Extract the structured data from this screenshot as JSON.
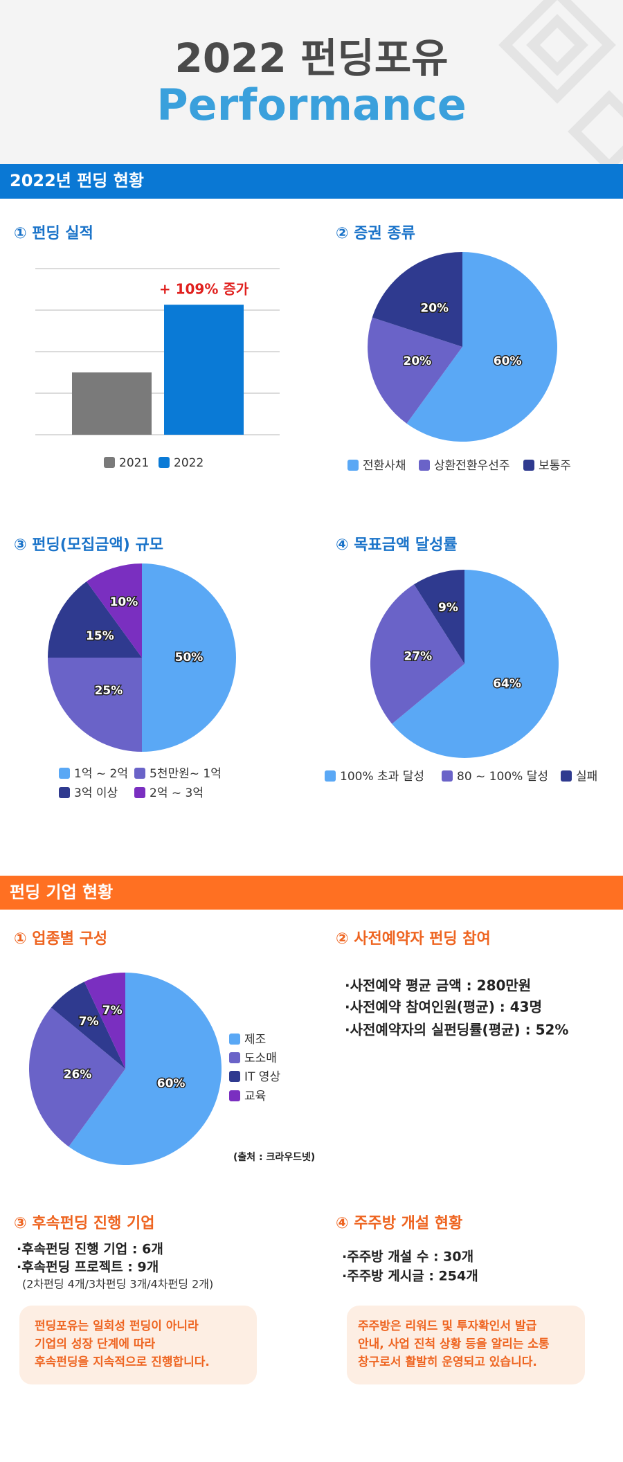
{
  "header": {
    "title_line1": "2022 펀딩포유",
    "title_line2": "Performance"
  },
  "section1": {
    "title": "2022년 펀딩 현황",
    "bar": {
      "type": "bar",
      "title": "① 펀딩 실적",
      "categories": [
        "2021",
        "2022"
      ],
      "values": [
        1.5,
        3.13
      ],
      "colors": [
        "#7a7a7a",
        "#0a7ad6"
      ],
      "annotation": "+ 109% 증가",
      "ylim": [
        0,
        4
      ],
      "yticks": [
        0,
        1,
        2,
        3,
        4
      ],
      "grid": true
    },
    "pie1": {
      "type": "pie",
      "title": "② 증권 종류",
      "labels": [
        "전환사채",
        "상환전환우선주",
        "보통주"
      ],
      "values": [
        60,
        20,
        20
      ],
      "value_labels": [
        "60%",
        "20%",
        "20%"
      ],
      "colors": [
        "#5aa8f5",
        "#6a63c8",
        "#2f3a8f"
      ]
    },
    "pie2": {
      "type": "pie",
      "title": "③ 펀딩(모집금액) 규모",
      "labels": [
        "1억 ~ 2억",
        "5천만원~ 1억",
        "3억 이상",
        "2억 ~ 3억"
      ],
      "values": [
        50,
        25,
        15,
        10
      ],
      "value_labels": [
        "50%",
        "25%",
        "15%",
        "10%"
      ],
      "colors": [
        "#5aa8f5",
        "#6a63c8",
        "#2f3a8f",
        "#7a2fc0"
      ]
    },
    "pie3": {
      "type": "pie",
      "title": "④ 목표금액 달성률",
      "labels": [
        "100% 초과 달성",
        "80 ~ 100% 달성",
        "실패"
      ],
      "values": [
        64,
        27,
        9
      ],
      "value_labels": [
        "64%",
        "27%",
        "9%"
      ],
      "colors": [
        "#5aa8f5",
        "#6a63c8",
        "#2f3a8f"
      ]
    }
  },
  "section2": {
    "title": "펀딩 기업 현황",
    "pie4": {
      "type": "pie",
      "title": "① 업종별 구성",
      "labels": [
        "제조",
        "도소매",
        "IT 영상",
        "교육"
      ],
      "values": [
        60,
        26,
        7,
        7
      ],
      "value_labels": [
        "60%",
        "26%",
        "7%",
        "7%"
      ],
      "colors": [
        "#5aa8f5",
        "#6a63c8",
        "#2f3a8f",
        "#7a2fc0"
      ],
      "source": "(출처 : 크라우드넷)"
    },
    "block2": {
      "title": "② 사전예약자 펀딩 참여",
      "items": [
        "·사전예약 평균 금액 : 280만원",
        "·사전예약 참여인원(평균) : 43명",
        "·사전예약자의 실펀딩률(평균) : 52%"
      ]
    },
    "block3": {
      "title": "③ 후속펀딩 진행 기업",
      "items": [
        "·후속펀딩 진행 기업 : 6개",
        "·후속펀딩 프로젝트 : 9개"
      ],
      "note": "(2차펀딩 4개/3차펀딩 3개/4차펀딩 2개)",
      "callout": [
        "펀딩포유는 일회성 펀딩이 아니라",
        "기업의 성장 단계에 따라",
        "후속펀딩을 지속적으로 진행합니다."
      ]
    },
    "block4": {
      "title": "④ 주주방 개설 현황",
      "items": [
        "·주주방 개설 수 : 30개",
        "·주주방 게시글 : 254개"
      ],
      "callout": [
        "주주방은 리워드 및 투자확인서 발급",
        "안내, 사업 진척 상황 등을 알리는 소통",
        "창구로서 활발히 운영되고 있습니다."
      ]
    }
  }
}
